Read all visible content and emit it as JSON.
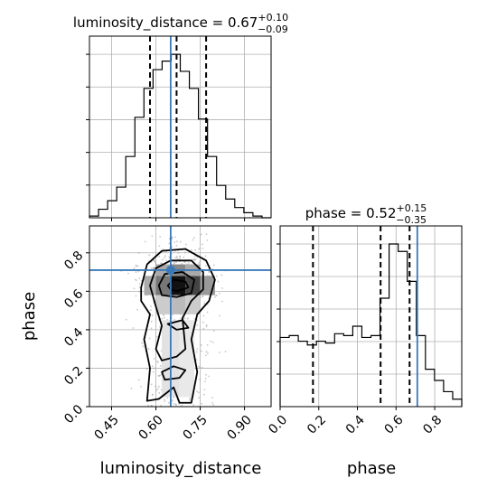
{
  "chart_data": [
    {
      "panel": "marginal",
      "type": "histogram",
      "parameter": "luminosity_distance",
      "title": {
        "main": "luminosity_distance = 0.67",
        "sup": "+0.10",
        "sub": "−0.09"
      },
      "xlim": [
        0.375,
        0.99
      ],
      "x_bins": [
        0.375,
        0.4058,
        0.4365,
        0.4673,
        0.498,
        0.5288,
        0.5595,
        0.5903,
        0.621,
        0.6518,
        0.6825,
        0.7133,
        0.744,
        0.7748,
        0.8055,
        0.8363,
        0.867,
        0.8978,
        0.9285,
        0.9593,
        0.99
      ],
      "counts": [
        1,
        5,
        10,
        18,
        36,
        59,
        76,
        87,
        92,
        96,
        86,
        76,
        58,
        36,
        19,
        11,
        6,
        3,
        1,
        0
      ],
      "quantile_lines": [
        0.58,
        0.67,
        0.77
      ],
      "truth": 0.65,
      "grid": true
    },
    {
      "panel": "2d",
      "type": "heatmap",
      "parameters": [
        "luminosity_distance",
        "phase"
      ],
      "xlabel": "luminosity_distance",
      "ylabel": "phase",
      "xlim": [
        0.375,
        0.99
      ],
      "ylim": [
        0.0,
        0.94
      ],
      "xticks": [
        0.45,
        0.6,
        0.75,
        0.9
      ],
      "xtick_labels": [
        "0.45",
        "0.60",
        "0.75",
        "0.90"
      ],
      "yticks": [
        0.0,
        0.2,
        0.4,
        0.6,
        0.8
      ],
      "ytick_labels": [
        "0.0",
        "0.2",
        "0.4",
        "0.6",
        "0.8"
      ],
      "truth": [
        0.65,
        0.71
      ],
      "grid": true
    },
    {
      "panel": "marginal",
      "type": "histogram",
      "parameter": "phase",
      "title": {
        "main": "phase = 0.52",
        "sup": "+0.15",
        "sub": "−0.35"
      },
      "xlabel": "phase",
      "xlim": [
        0.0,
        0.94
      ],
      "xticks": [
        0.0,
        0.2,
        0.4,
        0.6,
        0.8
      ],
      "xtick_labels": [
        "0.0",
        "0.2",
        "0.4",
        "0.6",
        "0.8"
      ],
      "x_bins": [
        0.0,
        0.047,
        0.094,
        0.141,
        0.188,
        0.235,
        0.282,
        0.329,
        0.376,
        0.423,
        0.47,
        0.517,
        0.564,
        0.611,
        0.658,
        0.705,
        0.752,
        0.799,
        0.846,
        0.893,
        0.94
      ],
      "counts": [
        37,
        38,
        35,
        33,
        35,
        34,
        39,
        38,
        43,
        37,
        38,
        58,
        87,
        83,
        67,
        38,
        20,
        14,
        8,
        4
      ],
      "quantile_lines": [
        0.17,
        0.52,
        0.67
      ],
      "truth": 0.71,
      "grid": true
    }
  ]
}
